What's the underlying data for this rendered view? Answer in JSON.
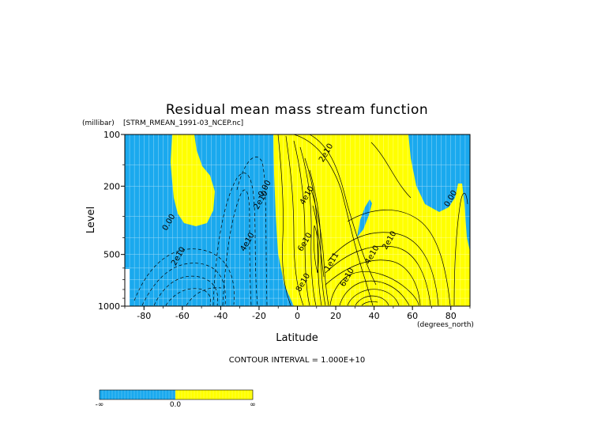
{
  "chart_data": {
    "type": "contour",
    "title": "Residual mean mass stream function",
    "subtitle": "[STRM_RMEAN_1991-03_NCEP.nc]",
    "xlabel": "Latitude",
    "x_units": "(degrees_north)",
    "ylabel": "Level",
    "y_units": "(millibar)",
    "xlim": [
      -90,
      90
    ],
    "ylim": [
      1000,
      100
    ],
    "y_scale": "log",
    "x_ticks": [
      -80,
      -60,
      -40,
      -20,
      0,
      20,
      40,
      60,
      80
    ],
    "y_ticks": [
      100,
      200,
      500,
      1000
    ],
    "contour_interval_text": "CONTOUR INTERVAL = 1.000E+10",
    "contour_labels": [
      {
        "text": "2e10",
        "lat": -61,
        "p": 520
      },
      {
        "text": "0.00",
        "lat": -66,
        "p": 330
      },
      {
        "text": "4e10",
        "lat": -25,
        "p": 430
      },
      {
        "text": "2e10",
        "lat": -18,
        "p": 245
      },
      {
        "text": "0.00",
        "lat": -16,
        "p": 210
      },
      {
        "text": "2e10",
        "lat": 16,
        "p": 130
      },
      {
        "text": "4e10",
        "lat": 6,
        "p": 230
      },
      {
        "text": "6e10",
        "lat": 5,
        "p": 430
      },
      {
        "text": "1e11",
        "lat": 19,
        "p": 560
      },
      {
        "text": "8e10",
        "lat": 4,
        "p": 740
      },
      {
        "text": "6e10",
        "lat": 27,
        "p": 690
      },
      {
        "text": "4e10",
        "lat": 40,
        "p": 510
      },
      {
        "text": "2e10",
        "lat": 49,
        "p": 420
      },
      {
        "text": "0.00",
        "lat": 81,
        "p": 240
      }
    ],
    "fill_colors": {
      "negative": "#1aa9ee",
      "positive": "#ffff00"
    },
    "colorbar": {
      "labels": [
        "-∞",
        "0.0",
        "∞"
      ]
    }
  }
}
